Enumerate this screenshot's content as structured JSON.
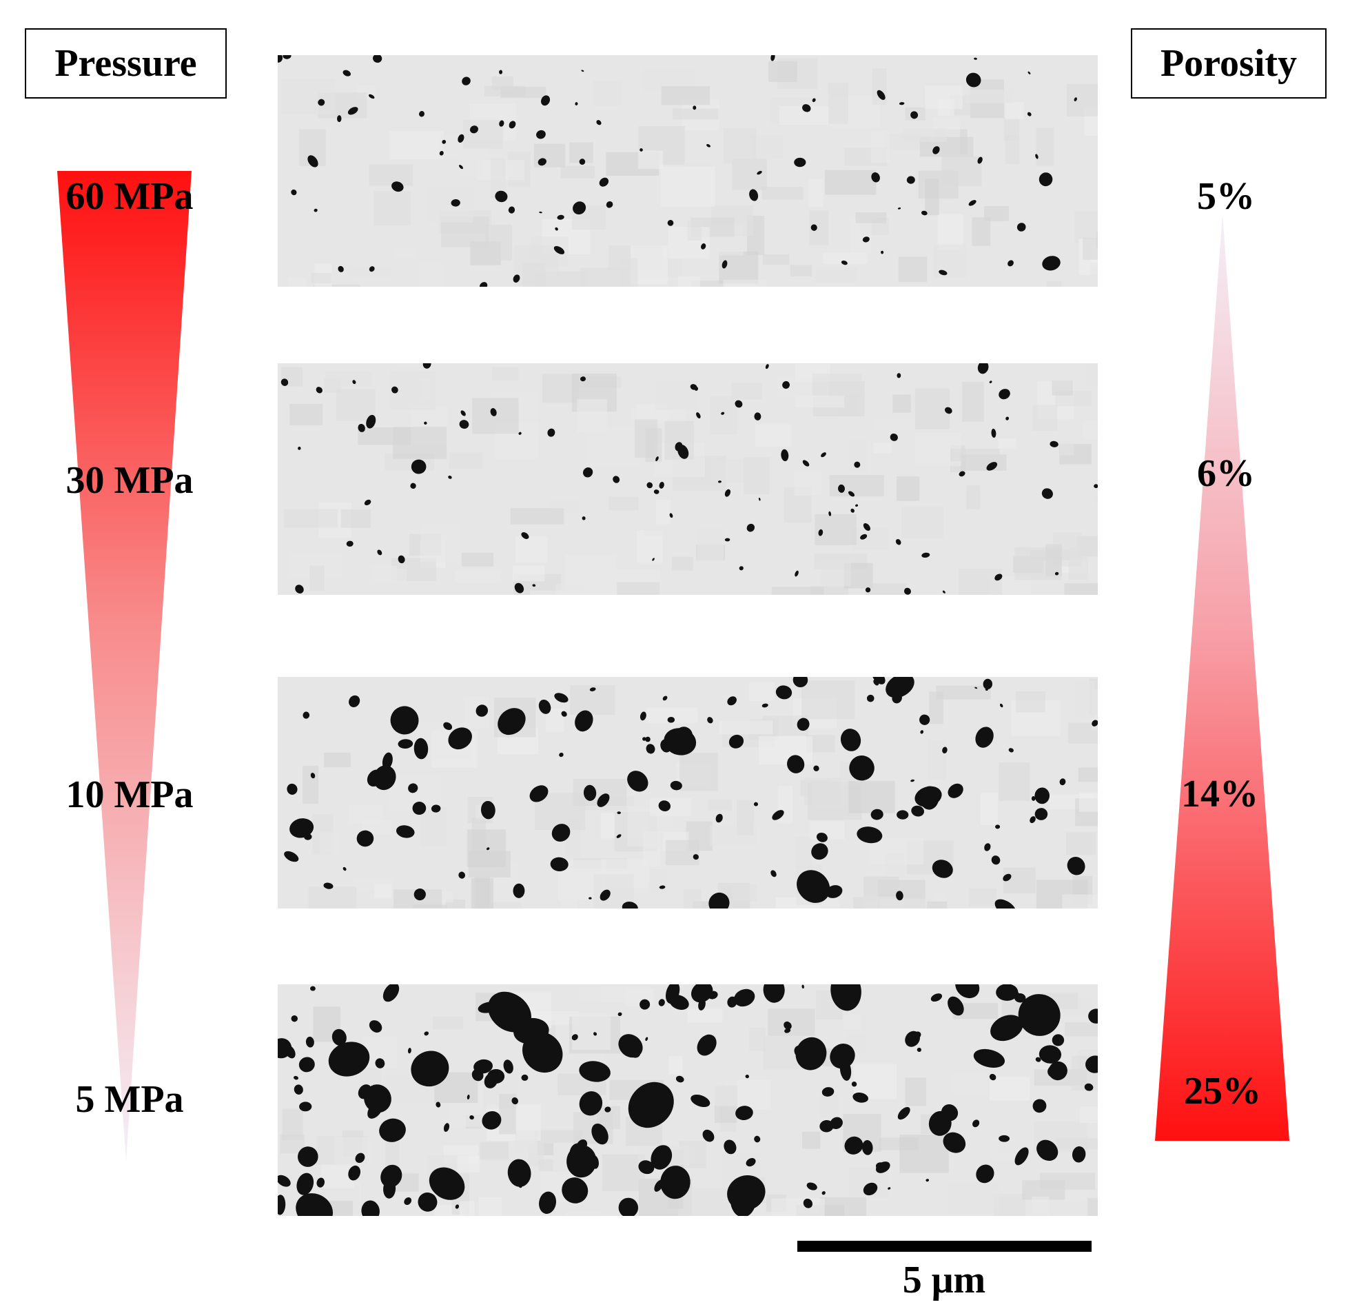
{
  "headers": {
    "pressure": "Pressure",
    "porosity": "Porosity"
  },
  "rows": [
    {
      "pressure": "60 MPa",
      "porosity": "5%",
      "porosity_value": 5,
      "pressure_value": 60
    },
    {
      "pressure": "30 MPa",
      "porosity": "6%",
      "porosity_value": 6,
      "pressure_value": 30
    },
    {
      "pressure": "10 MPa",
      "porosity": "14%",
      "porosity_value": 14,
      "pressure_value": 10
    },
    {
      "pressure": "5 MPa",
      "porosity": "25%",
      "porosity_value": 25,
      "pressure_value": 5
    }
  ],
  "scale_bar": {
    "label": "5 μm"
  },
  "colors": {
    "wedge_red": "#ff1010",
    "wedge_light": "#f4f0f8",
    "micrograph_background": "#e6e6e6",
    "pore": "#111111"
  }
}
